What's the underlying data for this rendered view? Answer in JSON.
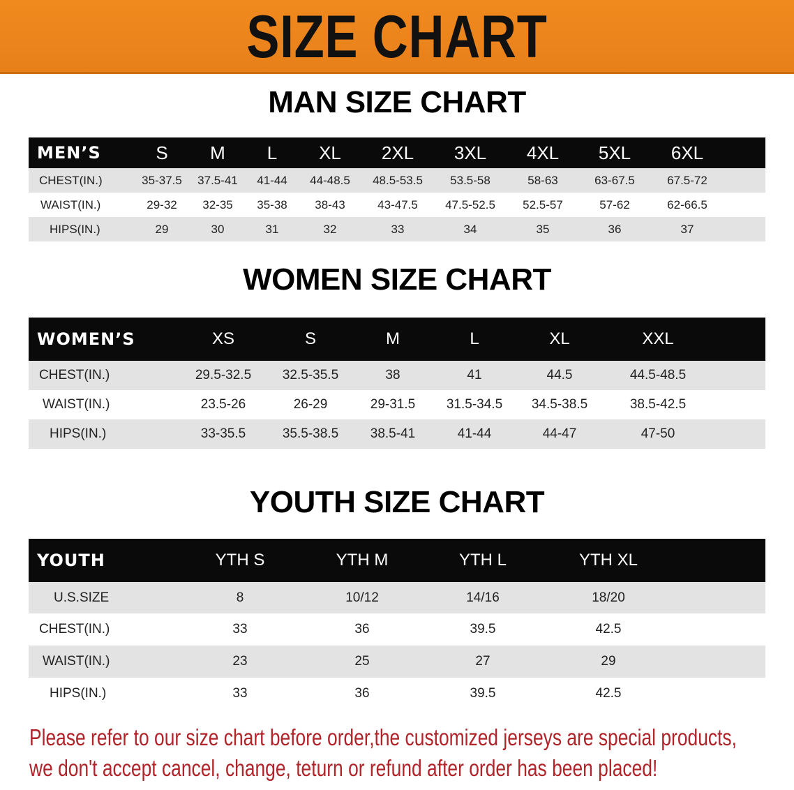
{
  "banner": {
    "title": "SIZE CHART",
    "color": "#ee861c"
  },
  "men": {
    "title": "MAN SIZE CHART",
    "header": "MEN’S",
    "sizes": [
      "S",
      "M",
      "L",
      "XL",
      "2XL",
      "3XL",
      "4XL",
      "5XL",
      "6XL"
    ],
    "rows": [
      {
        "label": "CHEST(IN.)",
        "values": [
          "35-37.5",
          "37.5-41",
          "41-44",
          "44-48.5",
          "48.5-53.5",
          "53.5-58",
          "58-63",
          "63-67.5",
          "67.5-72"
        ]
      },
      {
        "label": "WAIST(IN.)",
        "values": [
          "29-32",
          "32-35",
          "35-38",
          "38-43",
          "43-47.5",
          "47.5-52.5",
          "52.5-57",
          "57-62",
          "62-66.5"
        ]
      },
      {
        "label": "HIPS(IN.)",
        "values": [
          "29",
          "30",
          "31",
          "32",
          "33",
          "34",
          "35",
          "36",
          "37"
        ]
      }
    ]
  },
  "women": {
    "title": "WOMEN SIZE CHART",
    "header": "WOMEN’S",
    "sizes": [
      "XS",
      "S",
      "M",
      "L",
      "XL",
      "XXL"
    ],
    "rows": [
      {
        "label": "CHEST(IN.)",
        "values": [
          "29.5-32.5",
          "32.5-35.5",
          "38",
          "41",
          "44.5",
          "44.5-48.5"
        ]
      },
      {
        "label": "WAIST(IN.)",
        "values": [
          "23.5-26",
          "26-29",
          "29-31.5",
          "31.5-34.5",
          "34.5-38.5",
          "38.5-42.5"
        ]
      },
      {
        "label": "HIPS(IN.)",
        "values": [
          "33-35.5",
          "35.5-38.5",
          "38.5-41",
          "41-44",
          "44-47",
          "47-50"
        ]
      }
    ]
  },
  "youth": {
    "title": "YOUTH SIZE CHART",
    "header": "YOUTH",
    "sizes": [
      "YTH S",
      "YTH M",
      "YTH L",
      "YTH XL"
    ],
    "rows": [
      {
        "label": "U.S.SIZE",
        "values": [
          "8",
          "10/12",
          "14/16",
          "18/20"
        ]
      },
      {
        "label": "CHEST(IN.)",
        "values": [
          "33",
          "36",
          "39.5",
          "42.5"
        ]
      },
      {
        "label": "WAIST(IN.)",
        "values": [
          "23",
          "25",
          "27",
          "29"
        ]
      },
      {
        "label": "HIPS(IN.)",
        "values": [
          "33",
          "36",
          "39.5",
          "42.5"
        ]
      }
    ]
  },
  "notice": {
    "line1": "Please refer to our size chart before order,the customized jerseys are special products,",
    "line2": "we don't accept cancel, change, teturn or refund after order has been placed!",
    "color": "#b0242a"
  }
}
